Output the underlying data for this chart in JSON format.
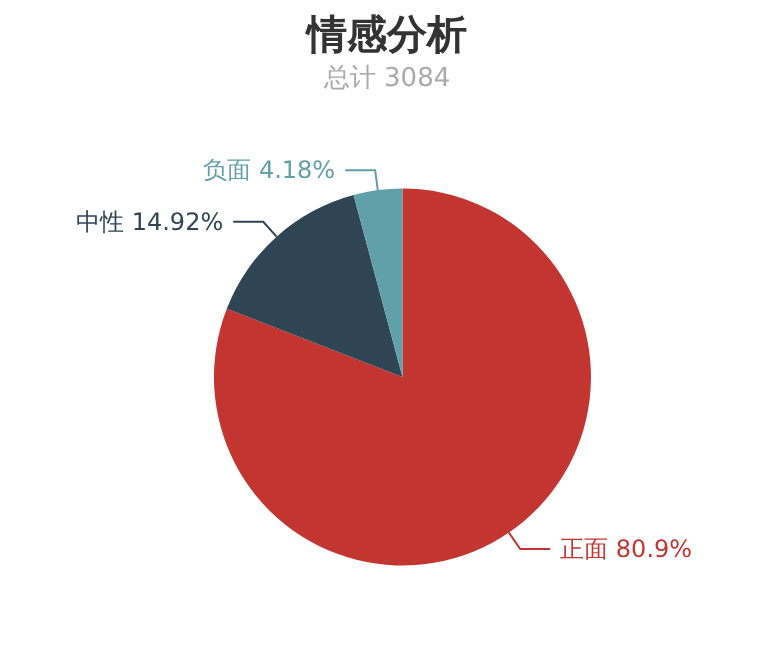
{
  "chart_data": {
    "type": "pie",
    "title": "情感分析",
    "subtitle": "总计 3084",
    "categories": [
      "正面",
      "中性",
      "负面"
    ],
    "values": [
      80.9,
      14.92,
      4.18
    ],
    "value_labels": [
      "80.9%",
      "14.92%",
      "4.18%"
    ],
    "colors": [
      "#c23531",
      "#2f4554",
      "#61a0a8"
    ],
    "legend": false
  }
}
